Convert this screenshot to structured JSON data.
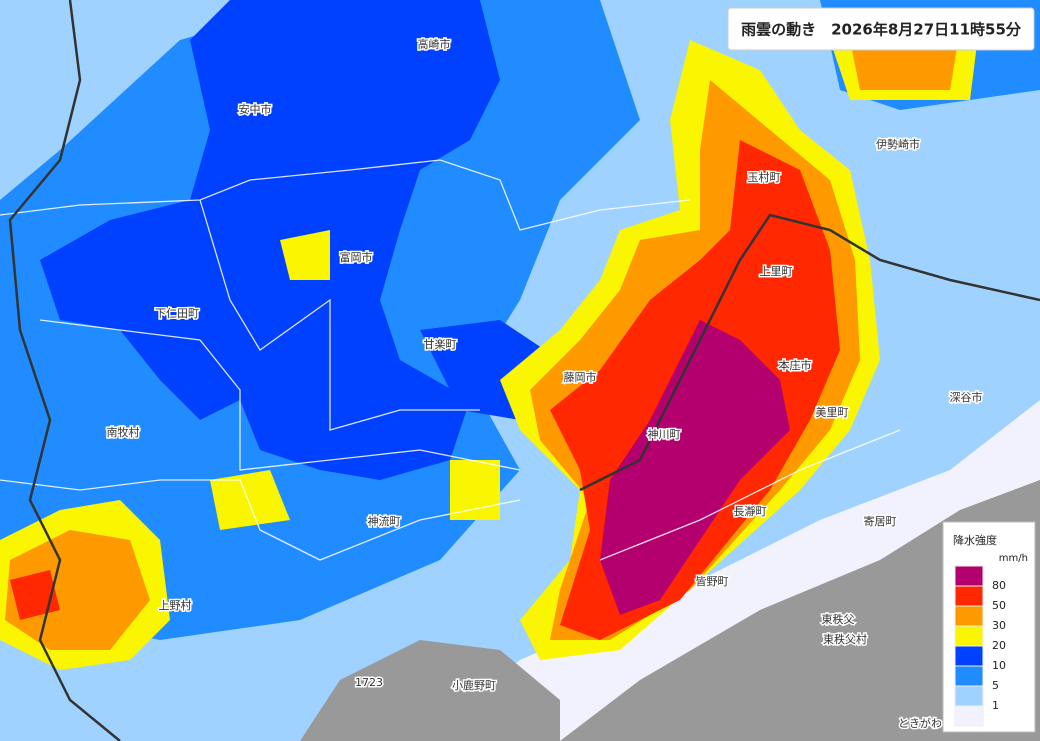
{
  "header": {
    "title": "雨雲の動き　2026年8月27日11時55分"
  },
  "places": [
    "高崎市",
    "安中市",
    "伊勢崎市",
    "玉村町",
    "富岡市",
    "上里町",
    "下仁田町",
    "甘楽町",
    "本庄市",
    "藤岡市",
    "美里町",
    "深谷市",
    "南牧村",
    "神川町",
    "長瀞町",
    "寄居町",
    "神流町",
    "上野村",
    "皆野町",
    "東秩父",
    "東秩父村",
    "小鹿野町",
    "1723",
    "ときがわ"
  ],
  "legend": {
    "title": "降水強度",
    "unit": "mm/h",
    "labels": [
      80,
      50,
      30,
      20,
      10,
      5,
      1
    ],
    "colors": [
      "#b4006e",
      "#ff2800",
      "#ff9900",
      "#faf500",
      "#0041ff",
      "#218cff",
      "#a0d2ff",
      "#f2f2ff"
    ]
  }
}
